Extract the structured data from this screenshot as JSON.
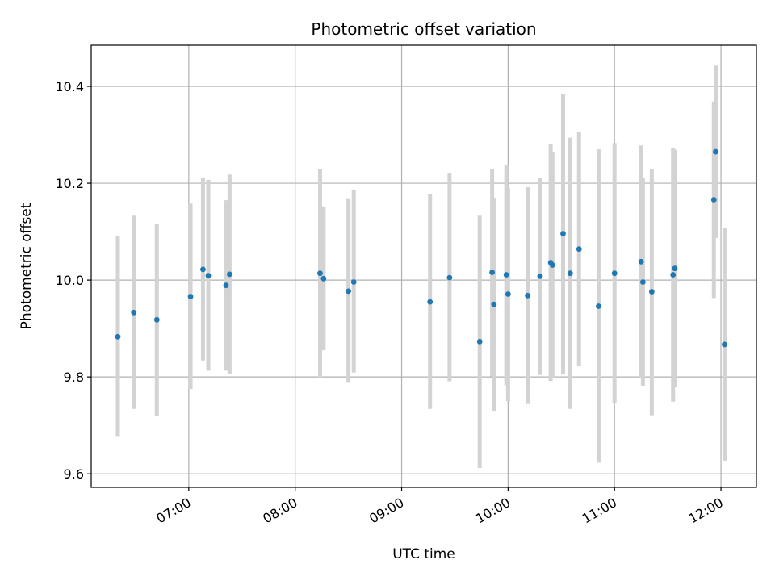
{
  "chart_data": {
    "type": "scatter",
    "title": "Photometric offset variation",
    "xlabel": "UTC time",
    "ylabel": "Photometric offset",
    "x_tick_labels": [
      "07:00",
      "08:00",
      "09:00",
      "10:00",
      "11:00",
      "12:00"
    ],
    "x_tick_values": [
      "07:00",
      "08:00",
      "09:00",
      "10:00",
      "11:00",
      "12:00"
    ],
    "y_tick_labels": [
      "9.6",
      "9.8",
      "10.0",
      "10.2",
      "10.4"
    ],
    "y_tick_values": [
      9.6,
      9.8,
      10.0,
      10.2,
      10.4
    ],
    "xlim": [
      "06:05",
      "12:20"
    ],
    "ylim": [
      9.572,
      10.485
    ],
    "grid": true,
    "colors": {
      "points": "#1f77b4",
      "errorbars": "#d3d3d3",
      "grid": "#b0b0b0"
    },
    "series": [
      {
        "points": [
          {
            "x": "06:20",
            "y": 9.883,
            "ylo": 9.678,
            "yhi": 10.09
          },
          {
            "x": "06:29",
            "y": 9.933,
            "ylo": 9.734,
            "yhi": 10.133
          },
          {
            "x": "06:42",
            "y": 9.918,
            "ylo": 9.72,
            "yhi": 10.116
          },
          {
            "x": "07:01",
            "y": 9.966,
            "ylo": 9.775,
            "yhi": 10.158
          },
          {
            "x": "07:08",
            "y": 10.022,
            "ylo": 9.834,
            "yhi": 10.212
          },
          {
            "x": "07:11",
            "y": 10.009,
            "ylo": 9.813,
            "yhi": 10.207
          },
          {
            "x": "07:21",
            "y": 9.989,
            "ylo": 9.813,
            "yhi": 10.165
          },
          {
            "x": "07:23",
            "y": 10.012,
            "ylo": 9.807,
            "yhi": 10.218
          },
          {
            "x": "08:14",
            "y": 10.014,
            "ylo": 9.799,
            "yhi": 10.229
          },
          {
            "x": "08:16",
            "y": 10.003,
            "ylo": 9.855,
            "yhi": 10.152
          },
          {
            "x": "08:30",
            "y": 9.977,
            "ylo": 9.788,
            "yhi": 10.169
          },
          {
            "x": "08:33",
            "y": 9.996,
            "ylo": 9.809,
            "yhi": 10.187
          },
          {
            "x": "09:16",
            "y": 9.955,
            "ylo": 9.734,
            "yhi": 10.177
          },
          {
            "x": "09:27",
            "y": 10.005,
            "ylo": 9.791,
            "yhi": 10.221
          },
          {
            "x": "09:44",
            "y": 9.873,
            "ylo": 9.612,
            "yhi": 10.133
          },
          {
            "x": "09:51",
            "y": 10.016,
            "ylo": 9.801,
            "yhi": 10.23
          },
          {
            "x": "09:52",
            "y": 9.95,
            "ylo": 9.73,
            "yhi": 10.17
          },
          {
            "x": "09:59",
            "y": 10.011,
            "ylo": 9.783,
            "yhi": 10.238
          },
          {
            "x": "10:00",
            "y": 9.971,
            "ylo": 9.75,
            "yhi": 10.19
          },
          {
            "x": "10:11",
            "y": 9.968,
            "ylo": 9.744,
            "yhi": 10.192
          },
          {
            "x": "10:18",
            "y": 10.008,
            "ylo": 9.804,
            "yhi": 10.211
          },
          {
            "x": "10:24",
            "y": 10.036,
            "ylo": 9.792,
            "yhi": 10.28
          },
          {
            "x": "10:25",
            "y": 10.031,
            "ylo": 9.797,
            "yhi": 10.265
          },
          {
            "x": "10:31",
            "y": 10.096,
            "ylo": 9.805,
            "yhi": 10.385
          },
          {
            "x": "10:35",
            "y": 10.014,
            "ylo": 9.734,
            "yhi": 10.294
          },
          {
            "x": "10:40",
            "y": 10.064,
            "ylo": 9.822,
            "yhi": 10.305
          },
          {
            "x": "10:51",
            "y": 9.946,
            "ylo": 9.623,
            "yhi": 10.27
          },
          {
            "x": "11:00",
            "y": 10.014,
            "ylo": 9.745,
            "yhi": 10.283
          },
          {
            "x": "11:15",
            "y": 10.038,
            "ylo": 9.797,
            "yhi": 10.278
          },
          {
            "x": "11:16",
            "y": 9.996,
            "ylo": 9.782,
            "yhi": 10.211
          },
          {
            "x": "11:21",
            "y": 9.976,
            "ylo": 9.721,
            "yhi": 10.23
          },
          {
            "x": "11:33",
            "y": 10.011,
            "ylo": 9.749,
            "yhi": 10.273
          },
          {
            "x": "11:34",
            "y": 10.024,
            "ylo": 9.78,
            "yhi": 10.269
          },
          {
            "x": "11:56",
            "y": 10.166,
            "ylo": 9.963,
            "yhi": 10.369
          },
          {
            "x": "11:57",
            "y": 10.265,
            "ylo": 10.087,
            "yhi": 10.443
          },
          {
            "x": "12:02",
            "y": 9.867,
            "ylo": 9.627,
            "yhi": 10.107
          }
        ]
      }
    ]
  }
}
